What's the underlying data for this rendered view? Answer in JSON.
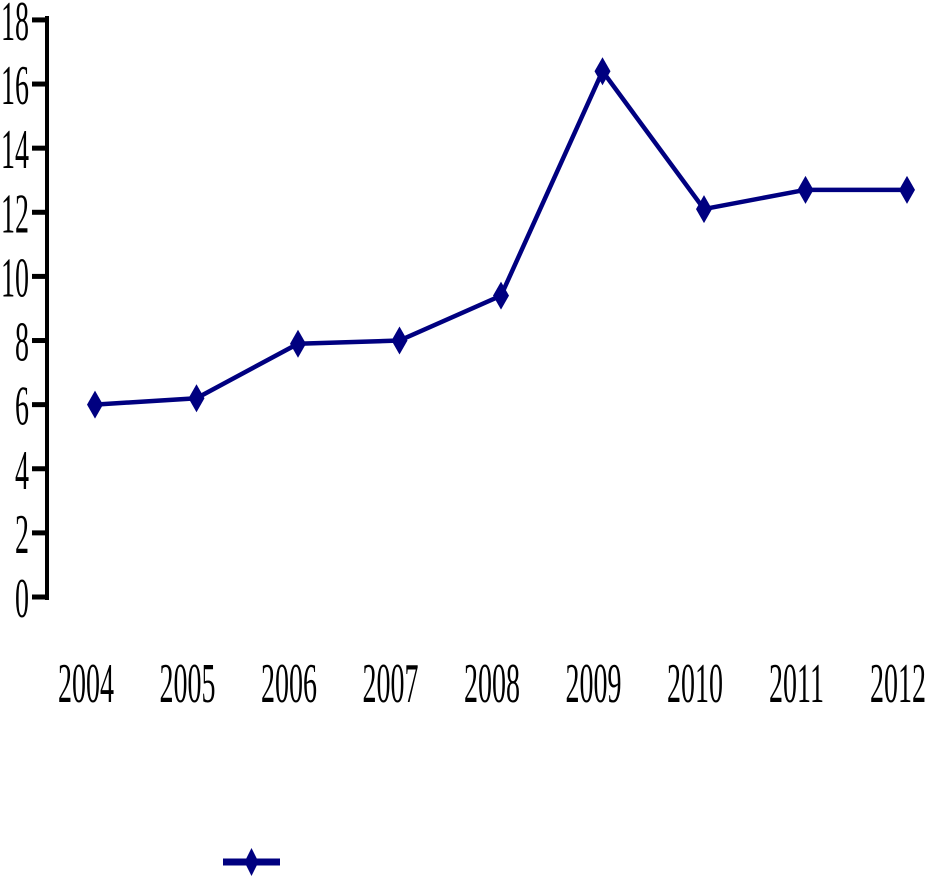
{
  "chart_data": {
    "type": "line",
    "title": "",
    "xlabel": "",
    "ylabel": "",
    "categories": [
      "2004",
      "2005",
      "2006",
      "2007",
      "2008",
      "2009",
      "2010",
      "2011",
      "2012"
    ],
    "series": [
      {
        "name": "",
        "values": [
          6.0,
          6.2,
          7.9,
          8.0,
          9.4,
          16.4,
          12.1,
          12.7,
          12.7
        ],
        "color": "#000080",
        "marker": "diamond"
      }
    ],
    "ylim": [
      0,
      18
    ],
    "y_ticks": [
      0,
      2,
      4,
      6,
      8,
      10,
      12,
      14,
      16,
      18
    ],
    "grid": false,
    "axis_color": "#000000",
    "background_color": "#ffffff",
    "legend": {
      "position": "bottom-left",
      "label": "",
      "marker": "diamond-on-line"
    }
  }
}
